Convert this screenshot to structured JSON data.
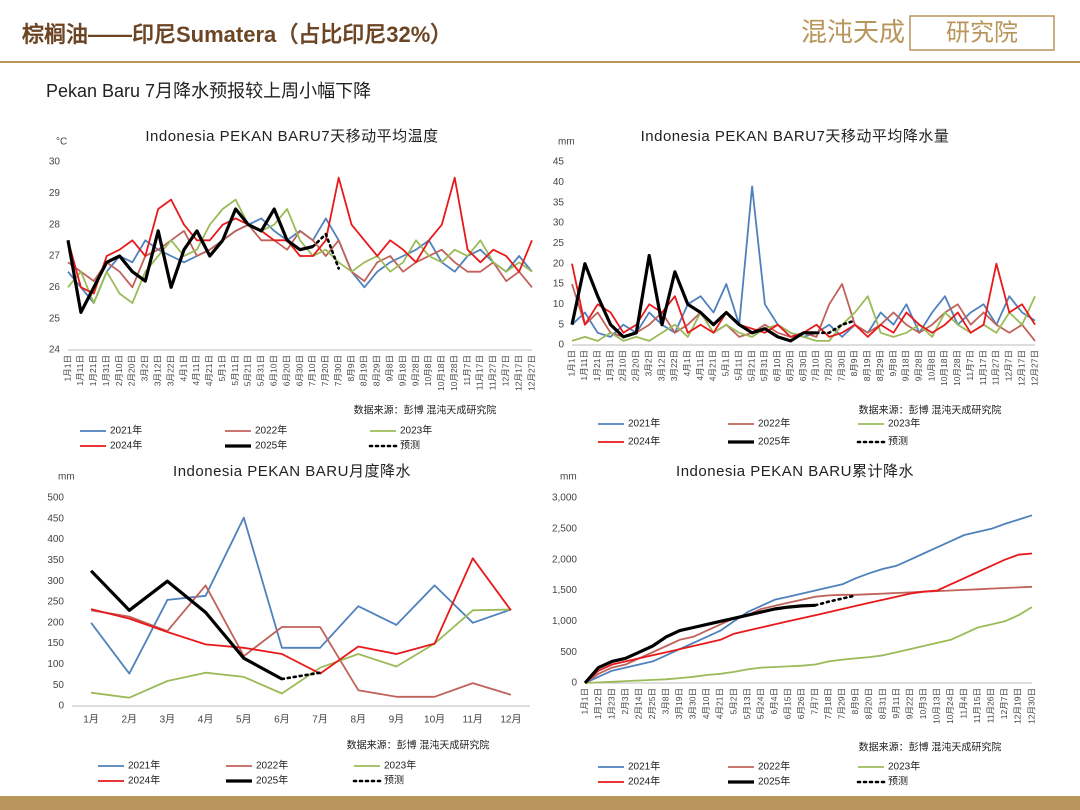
{
  "header": {
    "title": "棕榈油——印尼Sumatera（占比印尼32%）",
    "logo": "混沌天成",
    "logo_sub": "研究院"
  },
  "subtitle": "Pekan Baru 7月降水预报较上周小幅下降",
  "chart_data": [
    {
      "type": "line",
      "title": "Indonesia PEKAN BARU7天移动平均温度",
      "y_label": "°C",
      "source": "数据来源：彭博  混沌天成研究院",
      "categories": [
        "1月1日",
        "1月11日",
        "1月21日",
        "1月31日",
        "2月10日",
        "2月20日",
        "3月2日",
        "3月12日",
        "3月22日",
        "4月1日",
        "4月11日",
        "4月21日",
        "5月1日",
        "5月11日",
        "5月21日",
        "5月31日",
        "6月10日",
        "6月20日",
        "6月30日",
        "7月10日",
        "7月20日",
        "7月30日",
        "8月9日",
        "8月19日",
        "8月29日",
        "9月8日",
        "9月18日",
        "9月28日",
        "10月8日",
        "10月18日",
        "10月28日",
        "11月7日",
        "11月17日",
        "11月27日",
        "12月7日",
        "12月17日",
        "12月27日"
      ],
      "ylim": [
        24,
        30
      ],
      "yticks": [
        24,
        25,
        26,
        27,
        28,
        29,
        30
      ],
      "series": [
        {
          "name": "2021年",
          "color": "#4f81bd",
          "values": [
            26.5,
            26,
            25.5,
            26.5,
            27,
            26.8,
            27.5,
            27.2,
            27,
            26.8,
            27,
            27.2,
            27.5,
            27.8,
            28,
            28.2,
            27.8,
            27.5,
            27.8,
            27.5,
            28.2,
            27.5,
            26.5,
            26,
            26.5,
            26.8,
            27,
            27.2,
            27.5,
            26.8,
            26.5,
            27,
            27.2,
            26.8,
            26.5,
            27,
            26.5
          ]
        },
        {
          "name": "2022年",
          "color": "#c0625a",
          "values": [
            26.8,
            26.5,
            26.2,
            26.8,
            26.5,
            26,
            27,
            27.2,
            27.5,
            27.8,
            27,
            27.2,
            27.5,
            27.8,
            28,
            27.5,
            27.5,
            27.2,
            27.8,
            27.5,
            27,
            27.5,
            26.5,
            26.2,
            26.8,
            27,
            26.5,
            26.8,
            27,
            27.2,
            26.8,
            26.5,
            26.5,
            26.8,
            26.2,
            26.5,
            26
          ]
        },
        {
          "name": "2023年",
          "color": "#9bbb59",
          "values": [
            26,
            26.5,
            25.5,
            26.5,
            25.8,
            25.5,
            26.5,
            27,
            27.5,
            27,
            27.2,
            28,
            28.5,
            28.8,
            28,
            27.8,
            28,
            28.5,
            27.5,
            27,
            27.2,
            26.8,
            26.5,
            26.8,
            27,
            26.5,
            26.8,
            27.5,
            27,
            26.8,
            27.2,
            27,
            27.5,
            26.8,
            26.5,
            26.8,
            26.5
          ]
        },
        {
          "name": "2024年",
          "color": "#e8191b",
          "values": [
            27.5,
            26,
            25.8,
            27,
            27.2,
            27.5,
            27,
            28.5,
            28.8,
            28,
            27.5,
            27.5,
            28,
            28.2,
            28,
            27.8,
            27.5,
            27.5,
            27,
            27,
            27.5,
            29.5,
            28,
            27.5,
            27,
            27.5,
            27.2,
            26.8,
            27.5,
            28,
            29.5,
            27.2,
            26.8,
            27.2,
            27,
            26.5,
            27.5
          ]
        },
        {
          "name": "2025年",
          "color": "#000000",
          "line_style": "bold",
          "values": [
            27.5,
            25.2,
            26,
            26.8,
            27,
            26.5,
            26.2,
            27.8,
            26,
            27.2,
            27.8,
            27,
            27.5,
            28.5,
            28,
            27.8,
            28.5,
            27.5,
            27.2,
            27.3,
            null,
            null,
            null,
            null,
            null,
            null,
            null,
            null,
            null,
            null,
            null,
            null,
            null,
            null,
            null,
            null,
            null
          ]
        },
        {
          "name": "预测",
          "color": "#000000",
          "line_style": "dotted",
          "values": [
            null,
            null,
            null,
            null,
            null,
            null,
            null,
            null,
            null,
            null,
            null,
            null,
            null,
            null,
            null,
            null,
            null,
            null,
            null,
            27.3,
            27.7,
            26.6,
            null,
            null,
            null,
            null,
            null,
            null,
            null,
            null,
            null,
            null,
            null,
            null,
            null,
            null,
            null
          ]
        }
      ]
    },
    {
      "type": "line",
      "title": "Indonesia PEKAN BARU7天移动平均降水量",
      "y_label": "mm",
      "source": "数据来源：彭博  混沌天成研究院",
      "categories": [
        "1月1日",
        "1月11日",
        "1月21日",
        "1月31日",
        "2月10日",
        "2月20日",
        "3月2日",
        "3月12日",
        "3月22日",
        "4月1日",
        "4月11日",
        "4月21日",
        "5月1日",
        "5月11日",
        "5月21日",
        "5月31日",
        "6月10日",
        "6月20日",
        "6月30日",
        "7月10日",
        "7月20日",
        "7月30日",
        "8月9日",
        "8月19日",
        "8月29日",
        "9月8日",
        "9月18日",
        "9月28日",
        "10月8日",
        "10月18日",
        "10月28日",
        "11月7日",
        "11月17日",
        "11月27日",
        "12月7日",
        "12月17日",
        "12月27日"
      ],
      "ylim": [
        0,
        45
      ],
      "yticks": [
        0,
        5,
        10,
        15,
        20,
        25,
        30,
        35,
        40,
        45
      ],
      "series": [
        {
          "name": "2021年",
          "color": "#4f81bd",
          "values": [
            5,
            8,
            3,
            2,
            5,
            3,
            8,
            5,
            3,
            10,
            12,
            8,
            15,
            5,
            39,
            10,
            5,
            3,
            2,
            3,
            5,
            2,
            5,
            3,
            8,
            5,
            10,
            3,
            8,
            12,
            5,
            8,
            10,
            5,
            12,
            8,
            6
          ]
        },
        {
          "name": "2022年",
          "color": "#c0625a",
          "values": [
            15,
            5,
            8,
            3,
            2,
            3,
            5,
            8,
            3,
            5,
            8,
            3,
            5,
            2,
            3,
            5,
            3,
            2,
            3,
            2,
            10,
            15,
            5,
            3,
            5,
            8,
            5,
            3,
            5,
            8,
            10,
            5,
            8,
            5,
            3,
            5,
            1
          ]
        },
        {
          "name": "2023年",
          "color": "#9bbb59",
          "values": [
            1,
            2,
            1,
            3,
            1,
            2,
            1,
            3,
            5,
            2,
            8,
            3,
            5,
            3,
            2,
            4,
            5,
            3,
            2,
            1,
            1,
            5,
            8,
            12,
            3,
            2,
            3,
            5,
            2,
            8,
            5,
            3,
            5,
            3,
            8,
            5,
            12
          ]
        },
        {
          "name": "2024年",
          "color": "#e8191b",
          "values": [
            20,
            5,
            10,
            8,
            3,
            5,
            10,
            8,
            12,
            3,
            5,
            3,
            8,
            5,
            4,
            3,
            5,
            2,
            3,
            5,
            2,
            3,
            5,
            2,
            5,
            3,
            8,
            5,
            3,
            5,
            8,
            3,
            5,
            20,
            8,
            10,
            5
          ]
        },
        {
          "name": "2025年",
          "color": "#000000",
          "line_style": "bold",
          "values": [
            5,
            20,
            12,
            5,
            2,
            3,
            22,
            5,
            18,
            10,
            8,
            5,
            8,
            5,
            3,
            4,
            2,
            1,
            3,
            3,
            null,
            null,
            null,
            null,
            null,
            null,
            null,
            null,
            null,
            null,
            null,
            null,
            null,
            null,
            null,
            null,
            null
          ]
        },
        {
          "name": "预测",
          "color": "#000000",
          "line_style": "dotted",
          "values": [
            null,
            null,
            null,
            null,
            null,
            null,
            null,
            null,
            null,
            null,
            null,
            null,
            null,
            null,
            null,
            null,
            null,
            null,
            null,
            3,
            3,
            5,
            6,
            null,
            null,
            null,
            null,
            null,
            null,
            null,
            null,
            null,
            null,
            null,
            null,
            null,
            null
          ]
        }
      ]
    },
    {
      "type": "line",
      "title": "Indonesia PEKAN BARU月度降水",
      "y_label": "mm",
      "source": "数据来源：彭博  混沌天成研究院",
      "categories": [
        "1月",
        "2月",
        "3月",
        "4月",
        "5月",
        "6月",
        "7月",
        "8月",
        "9月",
        "10月",
        "11月",
        "12月"
      ],
      "ylim": [
        0,
        500
      ],
      "yticks": [
        0,
        50,
        100,
        150,
        200,
        250,
        300,
        350,
        400,
        450,
        500
      ],
      "series": [
        {
          "name": "2021年",
          "color": "#4f81bd",
          "values": [
            200,
            78,
            255,
            265,
            453,
            140,
            140,
            240,
            195,
            290,
            200,
            232
          ]
        },
        {
          "name": "2022年",
          "color": "#c0625a",
          "values": [
            230,
            215,
            180,
            290,
            120,
            190,
            190,
            38,
            22,
            22,
            55,
            27
          ]
        },
        {
          "name": "2023年",
          "color": "#9bbb59",
          "values": [
            32,
            20,
            60,
            80,
            70,
            30,
            92,
            125,
            95,
            150,
            230,
            232
          ]
        },
        {
          "name": "2024年",
          "color": "#e8191b",
          "values": [
            233,
            210,
            178,
            148,
            140,
            125,
            78,
            143,
            125,
            150,
            355,
            230
          ]
        },
        {
          "name": "2025年",
          "color": "#000000",
          "line_style": "bold",
          "values": [
            325,
            230,
            300,
            225,
            115,
            65,
            null,
            null,
            null,
            null,
            null,
            null
          ]
        },
        {
          "name": "预测",
          "color": "#000000",
          "line_style": "dotted",
          "values": [
            null,
            null,
            null,
            null,
            null,
            65,
            80,
            null,
            null,
            null,
            null,
            null
          ]
        }
      ]
    },
    {
      "type": "line",
      "title": "Indonesia PEKAN BARU累计降水",
      "y_label": "mm",
      "source": "数据来源：彭博  混沌天成研究院",
      "categories": [
        "1月1日",
        "1月12日",
        "1月23日",
        "2月3日",
        "2月14日",
        "2月25日",
        "3月8日",
        "3月19日",
        "3月30日",
        "4月10日",
        "4月21日",
        "5月2日",
        "5月13日",
        "5月24日",
        "6月4日",
        "6月15日",
        "6月26日",
        "7月7日",
        "7月18日",
        "7月29日",
        "8月9日",
        "8月20日",
        "8月31日",
        "9月11日",
        "9月22日",
        "10月3日",
        "10月13日",
        "10月24日",
        "11月4日",
        "11月15日",
        "11月26日",
        "12月7日",
        "12月19日",
        "12月30日"
      ],
      "ylim": [
        0,
        3000
      ],
      "yticks": [
        0,
        500,
        {
          "value": 1000,
          "label": "1,000"
        },
        {
          "value": 1500,
          "label": "1,500"
        },
        {
          "value": 2000,
          "label": "2,000"
        },
        {
          "value": 2500,
          "label": "2,500"
        },
        {
          "value": 3000,
          "label": "3,000"
        }
      ],
      "series": [
        {
          "name": "2021年",
          "color": "#4f81bd",
          "values": [
            0,
            100,
            200,
            250,
            300,
            350,
            450,
            550,
            650,
            750,
            850,
            1000,
            1150,
            1250,
            1350,
            1400,
            1450,
            1500,
            1550,
            1600,
            1700,
            1780,
            1850,
            1900,
            2000,
            2100,
            2200,
            2300,
            2400,
            2450,
            2500,
            2580,
            2650,
            2720
          ]
        },
        {
          "name": "2022年",
          "color": "#c0625a",
          "values": [
            0,
            150,
            250,
            300,
            400,
            500,
            600,
            700,
            750,
            850,
            950,
            1050,
            1100,
            1200,
            1250,
            1300,
            1350,
            1400,
            1420,
            1430,
            1430,
            1440,
            1450,
            1460,
            1470,
            1480,
            1490,
            1500,
            1510,
            1520,
            1530,
            1540,
            1550,
            1560
          ]
        },
        {
          "name": "2023年",
          "color": "#9bbb59",
          "values": [
            0,
            10,
            20,
            30,
            40,
            50,
            60,
            80,
            100,
            130,
            150,
            180,
            220,
            250,
            260,
            270,
            280,
            300,
            350,
            380,
            400,
            420,
            450,
            500,
            550,
            600,
            650,
            700,
            800,
            900,
            950,
            1000,
            1100,
            1230
          ]
        },
        {
          "name": "2024年",
          "color": "#e8191b",
          "values": [
            0,
            200,
            300,
            350,
            400,
            450,
            500,
            550,
            600,
            650,
            700,
            800,
            850,
            900,
            950,
            1000,
            1050,
            1100,
            1150,
            1200,
            1250,
            1300,
            1350,
            1400,
            1450,
            1480,
            1500,
            1600,
            1700,
            1800,
            1900,
            2000,
            2080,
            2100
          ]
        },
        {
          "name": "2025年",
          "color": "#000000",
          "line_style": "bold",
          "values": [
            0,
            250,
            350,
            400,
            500,
            600,
            750,
            850,
            900,
            950,
            1000,
            1050,
            1100,
            1150,
            1200,
            1230,
            1250,
            1260,
            null,
            null,
            null,
            null,
            null,
            null,
            null,
            null,
            null,
            null,
            null,
            null,
            null,
            null,
            null,
            null
          ]
        },
        {
          "name": "预测",
          "color": "#000000",
          "line_style": "dotted",
          "values": [
            null,
            null,
            null,
            null,
            null,
            null,
            null,
            null,
            null,
            null,
            null,
            null,
            null,
            null,
            null,
            null,
            null,
            1260,
            1320,
            1370,
            1420,
            null,
            null,
            null,
            null,
            null,
            null,
            null,
            null,
            null,
            null,
            null,
            null,
            null
          ]
        }
      ]
    }
  ]
}
